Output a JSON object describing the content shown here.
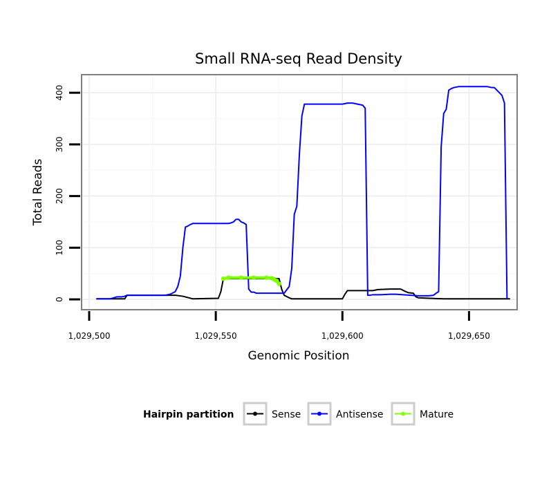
{
  "chart_data": {
    "type": "line",
    "title": "Small RNA-seq Read Density",
    "xlabel": "Genomic Position",
    "ylabel": "Total Reads",
    "xlim": [
      1029497,
      1029669
    ],
    "ylim": [
      -20,
      435
    ],
    "x_ticks": [
      1029500,
      1029550,
      1029600,
      1029650
    ],
    "x_tick_labels": [
      "1,029,500",
      "1,029,550",
      "1,029,600",
      "1,029,650"
    ],
    "y_ticks": [
      0,
      100,
      200,
      300,
      400
    ],
    "y_tick_labels": [
      "0",
      "100",
      "200",
      "300",
      "400"
    ],
    "grid": true,
    "legend": {
      "title": "Hairpin partition",
      "position": "bottom",
      "entries": [
        "Sense",
        "Antisense",
        "Mature"
      ]
    },
    "series": [
      {
        "name": "Sense",
        "color": "#000000",
        "x": [
          1029503,
          1029514,
          1029515,
          1029534,
          1029537,
          1029541,
          1029551,
          1029552,
          1029553,
          1029575,
          1029576,
          1029577,
          1029579,
          1029580,
          1029600,
          1029601,
          1029602,
          1029612,
          1029614,
          1029619,
          1029623,
          1029625,
          1029626,
          1029628,
          1029629,
          1029630,
          1029640,
          1029641,
          1029666
        ],
        "y": [
          1,
          1,
          8,
          8,
          6,
          1,
          2,
          15,
          40,
          40,
          20,
          8,
          3,
          1,
          1,
          10,
          17,
          17,
          19,
          20,
          20,
          15,
          13,
          12,
          5,
          3,
          1,
          1,
          1
        ]
      },
      {
        "name": "Antisense",
        "color": "#0000ff",
        "x": [
          1029503,
          1029508,
          1029509,
          1029511,
          1029513,
          1029514,
          1029515,
          1029530,
          1029532,
          1029534,
          1029535,
          1029536,
          1029537,
          1029538,
          1029539,
          1029540,
          1029541,
          1029543,
          1029546,
          1029555,
          1029556,
          1029557,
          1029558,
          1029559,
          1029560,
          1029561,
          1029562,
          1029563,
          1029564,
          1029565,
          1029566,
          1029577,
          1029579,
          1029580,
          1029581,
          1029582,
          1029583,
          1029584,
          1029585,
          1029586,
          1029587,
          1029595,
          1029600,
          1029602,
          1029604,
          1029606,
          1029608,
          1029609,
          1029610,
          1029611,
          1029612,
          1029615,
          1029619,
          1029621,
          1029630,
          1029634,
          1029636,
          1029637,
          1029638,
          1029639,
          1029640,
          1029641,
          1029642,
          1029643,
          1029644,
          1029646,
          1029650,
          1029657,
          1029659,
          1029660,
          1029661,
          1029663,
          1029664,
          1029665
        ],
        "y": [
          1,
          1,
          2,
          5,
          5,
          6,
          8,
          8,
          10,
          15,
          25,
          45,
          100,
          140,
          142,
          145,
          147,
          147,
          147,
          147,
          148,
          150,
          155,
          155,
          150,
          148,
          145,
          20,
          14,
          14,
          12,
          12,
          25,
          60,
          165,
          180,
          280,
          355,
          378,
          378,
          378,
          378,
          378,
          380,
          380,
          378,
          376,
          370,
          8,
          8,
          9,
          9,
          10,
          10,
          7,
          7,
          8,
          12,
          15,
          295,
          360,
          368,
          405,
          408,
          410,
          412,
          412,
          412,
          410,
          410,
          405,
          395,
          380,
          2
        ]
      },
      {
        "name": "Mature",
        "color": "#7fff00",
        "x": [
          1029553,
          1029555,
          1029560,
          1029565,
          1029570,
          1029572,
          1029573,
          1029574,
          1029575
        ],
        "y": [
          40,
          42,
          42,
          42,
          42,
          41,
          39,
          36,
          30
        ]
      }
    ]
  }
}
